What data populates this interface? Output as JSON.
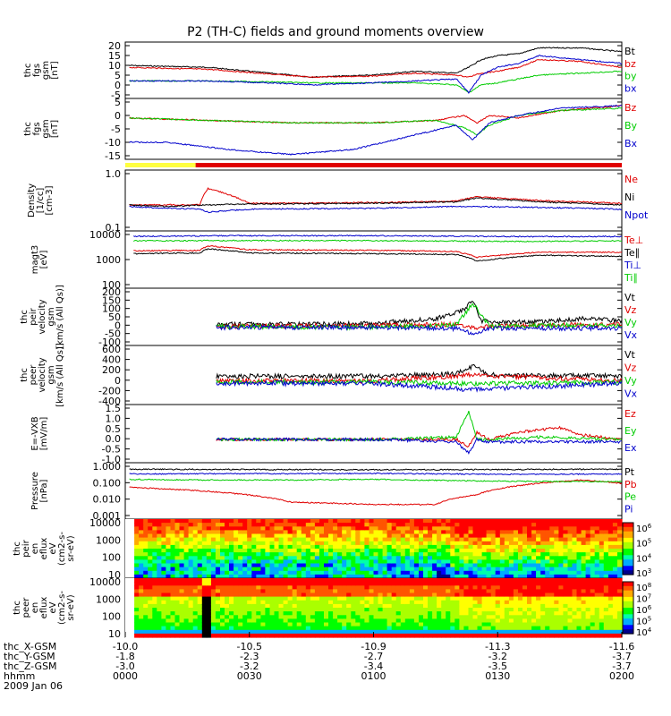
{
  "title": "P2 (TH-C) fields and ground moments overview",
  "colors": {
    "black": "#000000",
    "red": "#e00000",
    "green": "#00cc00",
    "blue": "#0000cc",
    "yellow": "#ffff40"
  },
  "chart_data": [
    {
      "id": "p1",
      "type": "line",
      "ylabel": [
        "thc",
        "fgs",
        "gsm",
        "[nT]"
      ],
      "yticks": [
        "20",
        "15",
        "10",
        "5",
        "0",
        "-5"
      ],
      "ylim": [
        -8,
        21
      ],
      "legend": [
        "Bt",
        "bz",
        "by",
        "bx"
      ],
      "series": [
        {
          "name": "Bt",
          "color": "#000000",
          "t": [
            0,
            20,
            35,
            45,
            60,
            70,
            80,
            83,
            86,
            90,
            95,
            100,
            110,
            120
          ],
          "v": [
            9,
            8,
            5,
            3,
            4,
            6,
            5,
            8,
            12,
            14,
            15,
            18,
            18,
            16
          ]
        },
        {
          "name": "bz",
          "color": "#e00000",
          "t": [
            0,
            20,
            35,
            45,
            60,
            70,
            80,
            83,
            86,
            90,
            95,
            100,
            110,
            120
          ],
          "v": [
            8,
            7,
            4.5,
            3,
            3.5,
            5,
            4,
            3,
            5,
            6,
            8,
            12,
            11,
            8
          ]
        },
        {
          "name": "by",
          "color": "#00cc00",
          "t": [
            0,
            20,
            35,
            45,
            60,
            70,
            80,
            83,
            86,
            90,
            95,
            100,
            110,
            120
          ],
          "v": [
            1,
            1,
            0.5,
            0,
            0,
            0,
            -1,
            -5,
            -1,
            0,
            2,
            4,
            5,
            6
          ]
        },
        {
          "name": "bx",
          "color": "#0000cc",
          "t": [
            0,
            20,
            35,
            45,
            60,
            70,
            80,
            83,
            86,
            90,
            95,
            100,
            110,
            120
          ],
          "v": [
            1,
            1,
            0,
            -1,
            0,
            1,
            2,
            -5,
            4,
            8,
            10,
            14,
            12,
            10
          ]
        }
      ]
    },
    {
      "id": "p2",
      "type": "line",
      "ylabel": [
        "thc",
        "fgs",
        "gsm",
        "[nT]"
      ],
      "yticks": [
        "5",
        "0",
        "-5",
        "-10",
        "-15"
      ],
      "ylim": [
        -18,
        7
      ],
      "legend": [
        "Bz",
        "By",
        "Bx"
      ],
      "series": [
        {
          "name": "Bz",
          "color": "#e00000",
          "t": [
            0,
            20,
            40,
            60,
            75,
            82,
            85,
            88,
            95,
            105,
            120
          ],
          "v": [
            -1,
            -2,
            -3,
            -3,
            -2,
            0,
            -3,
            0,
            -1,
            2,
            4
          ]
        },
        {
          "name": "By",
          "color": "#00cc00",
          "t": [
            0,
            20,
            40,
            60,
            75,
            82,
            85,
            88,
            95,
            105,
            120
          ],
          "v": [
            -1,
            -2,
            -3,
            -3,
            -2,
            -5,
            -8,
            -4,
            0,
            2,
            3
          ]
        },
        {
          "name": "Bx",
          "color": "#0000cc",
          "t": [
            0,
            10,
            25,
            40,
            55,
            70,
            80,
            84,
            88,
            95,
            105,
            120
          ],
          "v": [
            -11,
            -11,
            -14,
            -16,
            -14,
            -8,
            -4,
            -10,
            -3,
            0,
            3,
            4
          ]
        }
      ]
    },
    {
      "id": "p3",
      "type": "line",
      "ylabel": [
        "Density",
        "[1/cc]",
        "[cm-3]"
      ],
      "log": true,
      "yticks": [
        "1.0",
        "0.1"
      ],
      "ylim": [
        0.1,
        1.3
      ],
      "legend": [
        "Ne",
        "Ni",
        "Npot"
      ],
      "series": [
        {
          "name": "Ne",
          "color": "#e00000",
          "t": [
            0,
            10,
            18,
            20,
            30,
            60,
            80,
            85,
            100,
            120
          ],
          "v": [
            0.3,
            0.3,
            0.3,
            0.6,
            0.32,
            0.33,
            0.35,
            0.42,
            0.36,
            0.32
          ]
        },
        {
          "name": "Ni",
          "color": "#000000",
          "t": [
            0,
            10,
            20,
            30,
            60,
            80,
            85,
            100,
            120
          ],
          "v": [
            0.3,
            0.28,
            0.3,
            0.31,
            0.32,
            0.34,
            0.4,
            0.34,
            0.3
          ]
        },
        {
          "name": "Npot",
          "color": "#0000cc",
          "t": [
            0,
            10,
            18,
            20,
            30,
            60,
            80,
            100,
            120
          ],
          "v": [
            0.28,
            0.26,
            0.25,
            0.22,
            0.25,
            0.26,
            0.28,
            0.27,
            0.25
          ]
        }
      ]
    },
    {
      "id": "p4",
      "type": "line",
      "ylabel": [
        "magt3",
        "[eV]"
      ],
      "log": true,
      "yticks": [
        "10000",
        "1000",
        "100"
      ],
      "ylim": [
        100,
        10000
      ],
      "legend": [
        "Te⊥",
        "Te∥",
        "Ti⊥",
        "Ti∥"
      ],
      "series": [
        {
          "name": "Te⊥",
          "color": "#e00000",
          "t": [
            2,
            18,
            20,
            30,
            60,
            80,
            85,
            100,
            120
          ],
          "v": [
            2000,
            2100,
            3000,
            2200,
            2100,
            1900,
            1200,
            1800,
            1800
          ]
        },
        {
          "name": "Te∥",
          "color": "#000000",
          "t": [
            2,
            18,
            20,
            30,
            60,
            80,
            85,
            100,
            120
          ],
          "v": [
            1600,
            1700,
            2400,
            1700,
            1600,
            1500,
            900,
            1400,
            1300
          ]
        },
        {
          "name": "Ti⊥",
          "color": "#0000cc",
          "t": [
            2,
            30,
            60,
            80,
            100,
            120
          ],
          "v": [
            6500,
            6800,
            6800,
            6500,
            6300,
            6400
          ]
        },
        {
          "name": "Ti∥",
          "color": "#00cc00",
          "t": [
            2,
            30,
            60,
            80,
            100,
            120
          ],
          "v": [
            4500,
            4600,
            4600,
            4400,
            4300,
            4500
          ]
        }
      ]
    },
    {
      "id": "p5",
      "type": "line",
      "ylabel": [
        "thc",
        "peir",
        "velocity",
        "gsm",
        "[km/s (All Qs)]"
      ],
      "yticks": [
        "200",
        "150",
        "100",
        "50",
        "0",
        "-50",
        "-100"
      ],
      "ylim": [
        -100,
        200
      ],
      "t_start": 22,
      "legend": [
        "Vt",
        "Vz",
        "Vy",
        "Vx"
      ],
      "series": [
        {
          "name": "Vt",
          "color": "#000000",
          "t": [
            22,
            60,
            75,
            82,
            84,
            86,
            90,
            100,
            110,
            120
          ],
          "v": [
            10,
            15,
            40,
            90,
            140,
            30,
            20,
            25,
            40,
            30
          ]
        },
        {
          "name": "Vz",
          "color": "#e00000",
          "t": [
            22,
            60,
            80,
            84,
            88,
            100,
            120
          ],
          "v": [
            0,
            5,
            10,
            -10,
            0,
            5,
            10
          ]
        },
        {
          "name": "Vy",
          "color": "#00cc00",
          "t": [
            22,
            60,
            80,
            84,
            88,
            100,
            120
          ],
          "v": [
            0,
            -5,
            10,
            120,
            0,
            5,
            5
          ]
        },
        {
          "name": "Vx",
          "color": "#0000cc",
          "t": [
            22,
            60,
            80,
            84,
            88,
            100,
            120
          ],
          "v": [
            -5,
            -5,
            -10,
            -40,
            -10,
            -10,
            -10
          ]
        }
      ]
    },
    {
      "id": "p6",
      "type": "line",
      "ylabel": [
        "thc",
        "peer",
        "velocity",
        "gsm",
        "[km/s (All Qs)]"
      ],
      "yticks": [
        "600",
        "400",
        "200",
        "0",
        "-200",
        "-400"
      ],
      "ylim": [
        -400,
        600
      ],
      "t_start": 22,
      "legend": [
        "Vt",
        "Vz",
        "Vy",
        "Vx"
      ],
      "series": [
        {
          "name": "Vt",
          "color": "#000000",
          "t": [
            22,
            60,
            80,
            84,
            88,
            120
          ],
          "v": [
            80,
            80,
            120,
            250,
            100,
            80
          ]
        },
        {
          "name": "Vz",
          "color": "#e00000",
          "t": [
            22,
            60,
            84,
            120
          ],
          "v": [
            0,
            0,
            100,
            0
          ]
        },
        {
          "name": "Vy",
          "color": "#00cc00",
          "t": [
            22,
            60,
            84,
            120
          ],
          "v": [
            -20,
            -20,
            -50,
            -20
          ]
        },
        {
          "name": "Vx",
          "color": "#0000cc",
          "t": [
            22,
            60,
            84,
            120
          ],
          "v": [
            -40,
            -40,
            -150,
            -40
          ]
        }
      ]
    },
    {
      "id": "p7",
      "type": "line",
      "ylabel": [
        "E=-VXB",
        "[mV/m]"
      ],
      "yticks": [
        "1.5",
        "1.0",
        "0.5",
        "0.0",
        "-0.5",
        "-1.0"
      ],
      "ylim": [
        -1.0,
        1.5
      ],
      "t_start": 22,
      "legend": [
        "Ez",
        "Ey",
        "Ex"
      ],
      "series": [
        {
          "name": "Ez",
          "color": "#e00000",
          "t": [
            22,
            60,
            80,
            83,
            85,
            88,
            95,
            105,
            110,
            120
          ],
          "v": [
            0,
            0,
            0,
            -0.3,
            0.3,
            0,
            0.3,
            0.5,
            0.2,
            0
          ]
        },
        {
          "name": "Ey",
          "color": "#00cc00",
          "t": [
            22,
            60,
            80,
            83,
            85,
            88,
            100,
            120
          ],
          "v": [
            0,
            0,
            0.1,
            1.2,
            0,
            0,
            0.1,
            0
          ]
        },
        {
          "name": "Ex",
          "color": "#0000cc",
          "t": [
            22,
            60,
            80,
            83,
            85,
            88,
            100,
            120
          ],
          "v": [
            0,
            0,
            -0.1,
            -0.6,
            0,
            -0.1,
            -0.1,
            -0.1
          ]
        }
      ]
    },
    {
      "id": "p8",
      "type": "line",
      "ylabel": [
        "Pressure",
        "[nPa]"
      ],
      "log": true,
      "yticks": [
        "1.000",
        "0.100",
        "0.010",
        "0.001"
      ],
      "ylim": [
        0.001,
        1.0
      ],
      "legend": [
        "Pt",
        "Pb",
        "Pe",
        "Pi"
      ],
      "series": [
        {
          "name": "Pt",
          "color": "#000000",
          "t": [
            0,
            60,
            120
          ],
          "v": [
            0.45,
            0.42,
            0.45
          ]
        },
        {
          "name": "Pb",
          "color": "#e00000",
          "t": [
            0,
            20,
            40,
            60,
            75,
            85,
            100,
            110,
            120
          ],
          "v": [
            0.05,
            0.03,
            0.008,
            0.006,
            0.006,
            0.02,
            0.08,
            0.12,
            0.08
          ]
        },
        {
          "name": "Pe",
          "color": "#00cc00",
          "t": [
            0,
            20,
            40,
            60,
            80,
            100,
            120
          ],
          "v": [
            0.13,
            0.12,
            0.12,
            0.13,
            0.11,
            0.1,
            0.1
          ]
        },
        {
          "name": "Pi",
          "color": "#0000cc",
          "t": [
            0,
            20,
            40,
            60,
            80,
            100,
            120
          ],
          "v": [
            0.25,
            0.26,
            0.26,
            0.27,
            0.25,
            0.24,
            0.25
          ]
        }
      ]
    },
    {
      "id": "p9",
      "type": "heatmap",
      "ylabel": [
        "thc",
        "peir",
        "en",
        "eflux",
        "eV",
        "(cm2-s-",
        "sr-eV)"
      ],
      "yticks": [
        "10000",
        "1000",
        "100",
        "10"
      ],
      "colorbar": [
        "10^6",
        "10^5",
        "10^4",
        "10^3"
      ]
    },
    {
      "id": "p10",
      "type": "heatmap",
      "ylabel": [
        "thc",
        "peer",
        "en",
        "eflux",
        "eV",
        "(cm2-s-",
        "sr-eV)"
      ],
      "yticks": [
        "10000",
        "1000",
        "100",
        "10"
      ],
      "colorbar": [
        "10^8",
        "10^7",
        "10^6",
        "10^5",
        "10^4"
      ]
    }
  ],
  "x_axis": {
    "ticks": [
      "0000",
      "0030",
      "0100",
      "0130",
      "0200"
    ],
    "minutes": [
      0,
      30,
      60,
      90,
      120
    ]
  },
  "footer": {
    "rows": [
      {
        "label": "thc_X-GSM",
        "values": [
          "-10.0",
          "-10.5",
          "-10.9",
          "-11.3",
          "-11.6"
        ]
      },
      {
        "label": "thc_Y-GSM",
        "values": [
          "-1.8",
          "-2.3",
          "-2.7",
          "-3.2",
          "-3.7"
        ]
      },
      {
        "label": "thc_Z-GSM",
        "values": [
          "-3.0",
          "-3.2",
          "-3.4",
          "-3.5",
          "-3.7"
        ]
      },
      {
        "label": "hhmm",
        "values": [
          "0000",
          "0030",
          "0100",
          "0130",
          "0200"
        ]
      }
    ],
    "date": "2009 Jan 06"
  }
}
